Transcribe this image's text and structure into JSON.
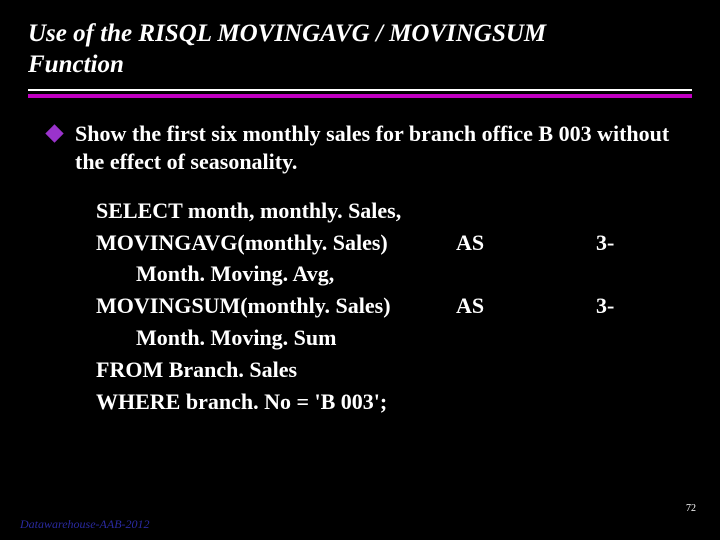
{
  "colors": {
    "background": "#000000",
    "title_text": "#ffffff",
    "body_text": "#ffffff",
    "thin_rule": "#ffffff",
    "thick_rule": "#c200c2",
    "bullet_diamond": "#9a33cc",
    "footer_text": "#2a2aa0"
  },
  "typography": {
    "family": "Times New Roman",
    "title_size_pt": 25,
    "title_italic": true,
    "title_bold": true,
    "body_size_pt": 22,
    "body_bold": true,
    "footer_size_pt": 12,
    "footer_italic": true,
    "pagenum_size_pt": 10
  },
  "title": {
    "line1": "Use of the RISQL MOVINGAVG / MOVINGSUM",
    "line2": "Function"
  },
  "bullet": {
    "text": "Show the first six monthly sales for branch office B 003 without the effect of seasonality."
  },
  "code": {
    "rows": [
      {
        "left": "SELECT month, monthly. Sales,",
        "mid": "",
        "right": ""
      },
      {
        "left": " MOVINGAVG(monthly. Sales)",
        "mid": "AS",
        "right": "3-"
      },
      {
        "left_indent": "Month. Moving. Avg,",
        "mid": "",
        "right": ""
      },
      {
        "left": " MOVINGSUM(monthly. Sales)",
        "mid": "AS",
        "right": "3-"
      },
      {
        "left_indent": "Month. Moving. Sum",
        "mid": "",
        "right": ""
      },
      {
        "left": " FROM Branch. Sales",
        "mid": "",
        "right": ""
      },
      {
        "left": " WHERE branch. No = 'B 003';",
        "mid": "",
        "right": ""
      }
    ]
  },
  "footer": "Datawarehouse-AAB-2012",
  "pagenum": "72"
}
